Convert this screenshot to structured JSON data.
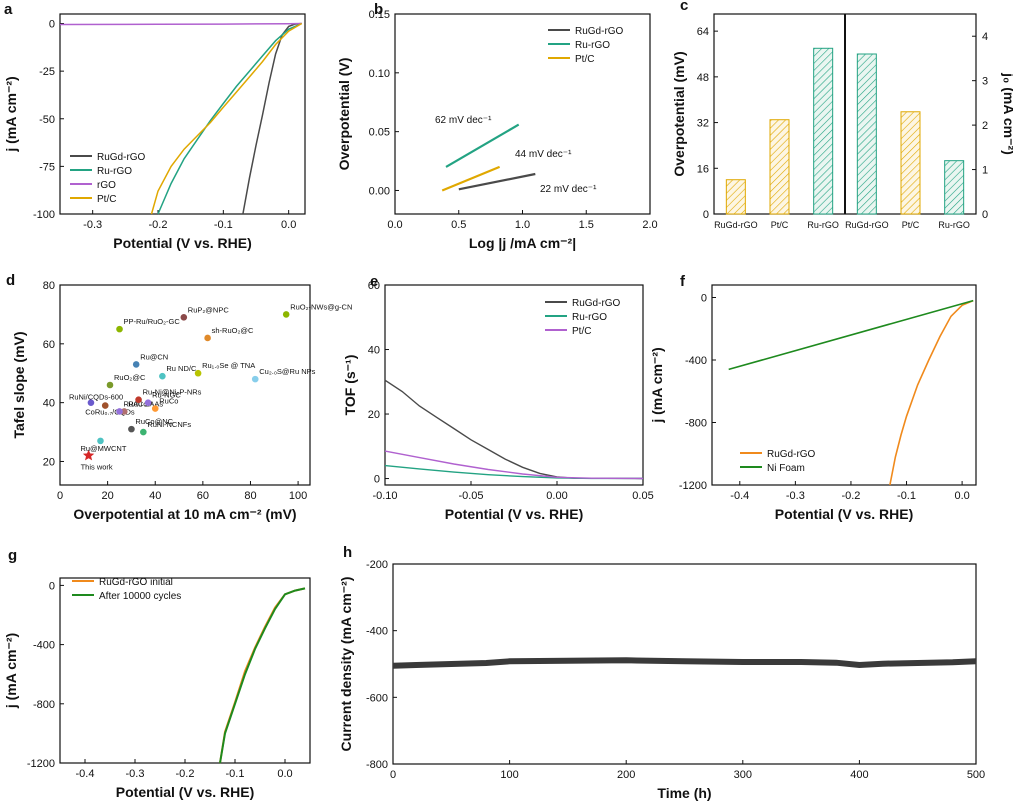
{
  "chart_data": [
    {
      "panel": "a",
      "type": "line",
      "xlabel": "Potential (V vs. RHE)",
      "ylabel": "j (mA cm⁻²)",
      "xlim": [
        -0.35,
        0.025
      ],
      "ylim": [
        -100,
        5
      ],
      "xticks": [
        -0.3,
        -0.2,
        -0.1,
        0.0
      ],
      "xticklabels": [
        "-0.3",
        "-0.2",
        "-0.1",
        "0.0"
      ],
      "yticks": [
        0,
        -25,
        -50,
        -75,
        -100
      ],
      "yticklabels": [
        "0",
        "-25",
        "-50",
        "-75",
        "-100"
      ],
      "legend_position": "bottom-left",
      "series": [
        {
          "name": "RuGd-rGO",
          "color": "#4a4a4a",
          "x": [
            0.02,
            0.01,
            0.0,
            -0.01,
            -0.02,
            -0.03,
            -0.04,
            -0.05,
            -0.06,
            -0.07
          ],
          "y": [
            0,
            -0.3,
            -1.5,
            -6,
            -16,
            -31,
            -48,
            -64,
            -81,
            -100
          ]
        },
        {
          "name": "Ru-rGO",
          "color": "#23a383",
          "x": [
            0.02,
            0.0,
            -0.02,
            -0.04,
            -0.06,
            -0.08,
            -0.1,
            -0.12,
            -0.14,
            -0.16,
            -0.18,
            -0.2
          ],
          "y": [
            0,
            -3,
            -9,
            -17,
            -25,
            -33,
            -42,
            -51,
            -61,
            -71,
            -84,
            -100
          ]
        },
        {
          "name": "rGO",
          "color": "#b061cf",
          "x": [
            -0.35,
            -0.2,
            -0.1,
            0.0,
            0.02
          ],
          "y": [
            -0.5,
            -0.4,
            -0.3,
            -0.1,
            0
          ]
        },
        {
          "name": "Pt/C",
          "color": "#e0a800",
          "x": [
            0.02,
            0.0,
            -0.02,
            -0.04,
            -0.06,
            -0.08,
            -0.1,
            -0.12,
            -0.14,
            -0.16,
            -0.18,
            -0.2,
            -0.21
          ],
          "y": [
            0,
            -4,
            -11,
            -20,
            -28,
            -36,
            -44,
            -52,
            -59,
            -66,
            -75,
            -88,
            -100
          ]
        }
      ]
    },
    {
      "panel": "b",
      "type": "line",
      "xlabel": "Log |j /mA cm⁻²|",
      "ylabel": "Overpotential (V)",
      "xlim": [
        0.0,
        2.0
      ],
      "ylim": [
        -0.02,
        0.15
      ],
      "xticks": [
        0.0,
        0.5,
        1.0,
        1.5,
        2.0
      ],
      "xticklabels": [
        "0.0",
        "0.5",
        "1.0",
        "1.5",
        "2.0"
      ],
      "yticks": [
        0.0,
        0.05,
        0.1,
        0.15
      ],
      "yticklabels": [
        "0.00",
        "0.05",
        "0.10",
        "0.15"
      ],
      "legend_position": "top-right",
      "series": [
        {
          "name": "RuGd-rGO",
          "color": "#4a4a4a",
          "x": [
            0.5,
            1.1
          ],
          "y": [
            0.001,
            0.014
          ]
        },
        {
          "name": "Ru-rGO",
          "color": "#23a383",
          "x": [
            0.4,
            0.97
          ],
          "y": [
            0.02,
            0.056
          ]
        },
        {
          "name": "Pt/C",
          "color": "#e0a800",
          "x": [
            0.37,
            0.82
          ],
          "y": [
            0.0,
            0.02
          ]
        }
      ],
      "annotations": [
        "62 mV dec⁻¹",
        "44 mV dec⁻¹",
        "22 mV dec⁻¹"
      ]
    },
    {
      "panel": "c",
      "type": "bar",
      "categories": [
        "RuGd-rGO",
        "Pt/C",
        "Ru-rGO",
        "RuGd-rGO",
        "Pt/C",
        "Ru-rGO"
      ],
      "ylabel_left": "Overpotential (mV)",
      "ylabel_right": "j₀ (mA cm⁻²)",
      "ylim_left": [
        0,
        70
      ],
      "ylim_right": [
        0,
        4.5
      ],
      "yticks_left": [
        0,
        16,
        32,
        48,
        64
      ],
      "yticklabels_left": [
        "0",
        "16",
        "32",
        "48",
        "64"
      ],
      "yticks_right": [
        0,
        1,
        2,
        3,
        4
      ],
      "yticklabels_right": [
        "0",
        "1",
        "2",
        "3",
        "4"
      ],
      "overpotential": [
        12,
        33,
        58
      ],
      "j0": [
        3.6,
        2.3,
        1.2
      ],
      "colors": [
        "#e0a800",
        "#e0a800",
        "#23a383",
        "#23a383",
        "#e0a800",
        "#23a383"
      ]
    },
    {
      "panel": "d",
      "type": "scatter",
      "xlabel": "Overpotential at 10 mA cm⁻² (mV)",
      "ylabel": "Tafel slope (mV)",
      "xlim": [
        0,
        105
      ],
      "ylim": [
        12,
        80
      ],
      "xticks": [
        0,
        20,
        40,
        60,
        80,
        100
      ],
      "xticklabels": [
        "0",
        "20",
        "40",
        "60",
        "80",
        "100"
      ],
      "yticks": [
        20,
        40,
        60,
        80
      ],
      "yticklabels": [
        "20",
        "40",
        "60",
        "80"
      ],
      "points": [
        {
          "label": "This work",
          "x": 12,
          "y": 22,
          "color": "#d62728",
          "marker": "star"
        },
        {
          "label": "Ru@MWCNT",
          "x": 17,
          "y": 27,
          "color": "#4fc3c3",
          "marker": "circle"
        },
        {
          "label": "RuNi/CQDs-600",
          "x": 13,
          "y": 40,
          "color": "#6a5acd",
          "marker": "circle"
        },
        {
          "label": "CoRu₀.₇/CQDs",
          "x": 19,
          "y": 39,
          "color": "#a0522d",
          "marker": "circle"
        },
        {
          "label": "RuO₂@C",
          "x": 21,
          "y": 46,
          "color": "#7a9a2a",
          "marker": "circle"
        },
        {
          "label": "RuCoP",
          "x": 27,
          "y": 37,
          "color": "#b07070",
          "marker": "circle"
        },
        {
          "label": "RuAu SAAs",
          "x": 25,
          "y": 37,
          "color": "#9370db",
          "marker": "circle"
        },
        {
          "label": "RuCo@NC",
          "x": 30,
          "y": 31,
          "color": "#555555",
          "marker": "circle"
        },
        {
          "label": "Ru@CN",
          "x": 32,
          "y": 53,
          "color": "#4682b4",
          "marker": "circle"
        },
        {
          "label": "PP-Ru/RuO₂-GC",
          "x": 25,
          "y": 65,
          "color": "#8db600",
          "marker": "circle"
        },
        {
          "label": "Ru-Ni@Ni₂P-NRs",
          "x": 33,
          "y": 41,
          "color": "#c0392b",
          "marker": "circle"
        },
        {
          "label": "Ru-NGC",
          "x": 37,
          "y": 40,
          "color": "#9370db",
          "marker": "circle"
        },
        {
          "label": "RuCo",
          "x": 40,
          "y": 38,
          "color": "#ff9933",
          "marker": "circle"
        },
        {
          "label": "Ru ND/C",
          "x": 43,
          "y": 49,
          "color": "#4fc3c3",
          "marker": "circle"
        },
        {
          "label": "RuNi-NCNFs",
          "x": 35,
          "y": 30,
          "color": "#3cb371",
          "marker": "circle"
        },
        {
          "label": "RuP₂@NPC",
          "x": 52,
          "y": 69,
          "color": "#8b4a4a",
          "marker": "circle"
        },
        {
          "label": "sh-RuO₂@C",
          "x": 62,
          "y": 62,
          "color": "#e08a2a",
          "marker": "circle"
        },
        {
          "label": "Ru₁.₀Se @ TNA",
          "x": 58,
          "y": 50,
          "color": "#b8c400",
          "marker": "circle"
        },
        {
          "label": "Cu₂.₀S@Ru NPs",
          "x": 82,
          "y": 48,
          "color": "#87ceeb",
          "marker": "circle"
        },
        {
          "label": "RuO₂-NWs@g-CN",
          "x": 95,
          "y": 70,
          "color": "#8db600",
          "marker": "circle"
        }
      ]
    },
    {
      "panel": "e",
      "type": "line",
      "xlabel": "Potential (V vs. RHE)",
      "ylabel": "TOF (s⁻¹)",
      "xlim": [
        -0.1,
        0.05
      ],
      "ylim": [
        -2,
        60
      ],
      "xticks": [
        -0.1,
        -0.05,
        0.0,
        0.05
      ],
      "xticklabels": [
        "-0.10",
        "-0.05",
        "0.00",
        "0.05"
      ],
      "yticks": [
        0,
        20,
        40,
        60
      ],
      "yticklabels": [
        "0",
        "20",
        "40",
        "60"
      ],
      "legend_position": "top-right",
      "series": [
        {
          "name": "RuGd-rGO",
          "color": "#4a4a4a",
          "x": [
            -0.1,
            -0.09,
            -0.08,
            -0.07,
            -0.06,
            -0.05,
            -0.04,
            -0.03,
            -0.02,
            -0.01,
            0.0,
            0.01,
            0.05
          ],
          "y": [
            30.5,
            27,
            22.5,
            19,
            15.5,
            12,
            9,
            6,
            3.5,
            1.6,
            0.5,
            0.1,
            0
          ]
        },
        {
          "name": "Ru-rGO",
          "color": "#23a383",
          "x": [
            -0.1,
            -0.08,
            -0.06,
            -0.04,
            -0.02,
            0.0,
            0.02,
            0.05
          ],
          "y": [
            4,
            3,
            2,
            1.2,
            0.6,
            0.2,
            0.05,
            0
          ]
        },
        {
          "name": "Pt/C",
          "color": "#b061cf",
          "x": [
            -0.1,
            -0.08,
            -0.06,
            -0.04,
            -0.02,
            0.0,
            0.02,
            0.05
          ],
          "y": [
            8.5,
            6.5,
            4.5,
            2.8,
            1.4,
            0.4,
            0.1,
            0
          ]
        }
      ]
    },
    {
      "panel": "f",
      "type": "line",
      "xlabel": "Potential (V vs. RHE)",
      "ylabel": "j (mA cm⁻²)",
      "xlim": [
        -0.45,
        0.025
      ],
      "ylim": [
        -1200,
        80
      ],
      "xticks": [
        -0.4,
        -0.3,
        -0.2,
        -0.1,
        0.0
      ],
      "xticklabels": [
        "-0.4",
        "-0.3",
        "-0.2",
        "-0.1",
        "0.0"
      ],
      "yticks": [
        0,
        -400,
        -800,
        -1200
      ],
      "yticklabels": [
        "0",
        "-400",
        "-800",
        "-1200"
      ],
      "legend_position": "bottom-left",
      "series": [
        {
          "name": "RuGd-rGO",
          "color": "#f08a1c",
          "x": [
            0.02,
            0.0,
            -0.02,
            -0.04,
            -0.06,
            -0.08,
            -0.1,
            -0.11,
            -0.12,
            -0.13
          ],
          "y": [
            -20,
            -50,
            -120,
            -250,
            -400,
            -560,
            -760,
            -880,
            -1020,
            -1200
          ]
        },
        {
          "name": "Ni Foam",
          "color": "#1e8a1e",
          "x": [
            -0.42,
            0.02
          ],
          "y": [
            -460,
            -20
          ]
        }
      ]
    },
    {
      "panel": "g",
      "type": "line",
      "xlabel": "Potential (V vs. RHE)",
      "ylabel": "j (mA cm⁻²)",
      "xlim": [
        -0.45,
        0.05
      ],
      "ylim": [
        -1200,
        50
      ],
      "xticks": [
        -0.4,
        -0.3,
        -0.2,
        -0.1,
        0.0
      ],
      "xticklabels": [
        "-0.4",
        "-0.3",
        "-0.2",
        "-0.1",
        "0.0"
      ],
      "yticks": [
        0,
        -400,
        -800,
        -1200
      ],
      "yticklabels": [
        "0",
        "-400",
        "-800",
        "-1200"
      ],
      "legend_position": "top-left",
      "series": [
        {
          "name": "RuGd-rGO initial",
          "color": "#f08a1c",
          "x": [
            0.04,
            0.02,
            0.0,
            -0.02,
            -0.04,
            -0.06,
            -0.08,
            -0.1,
            -0.12,
            -0.13
          ],
          "y": [
            -20,
            -35,
            -60,
            -150,
            -280,
            -420,
            -580,
            -790,
            -990,
            -1200
          ]
        },
        {
          "name": "After 10000 cycles",
          "color": "#1e8a1e",
          "x": [
            0.04,
            0.02,
            0.0,
            -0.02,
            -0.04,
            -0.06,
            -0.08,
            -0.1,
            -0.12,
            -0.13
          ],
          "y": [
            -20,
            -35,
            -60,
            -160,
            -290,
            -430,
            -600,
            -800,
            -1000,
            -1200
          ]
        }
      ]
    },
    {
      "panel": "h",
      "type": "line",
      "xlabel": "Time (h)",
      "ylabel": "Current density (mA cm⁻²)",
      "xlim": [
        0,
        500
      ],
      "ylim": [
        -800,
        -200
      ],
      "xticks": [
        0,
        100,
        200,
        300,
        400,
        500
      ],
      "xticklabels": [
        "0",
        "100",
        "200",
        "300",
        "400",
        "500"
      ],
      "yticks": [
        -200,
        -400,
        -600,
        -800
      ],
      "yticklabels": [
        "-200",
        "-400",
        "-600",
        "-800"
      ],
      "series": [
        {
          "name": "RuGd-rGO",
          "color": "#3a3a3a",
          "x": [
            0,
            20,
            50,
            80,
            100,
            150,
            200,
            250,
            300,
            350,
            380,
            400,
            420,
            450,
            480,
            500
          ],
          "y": [
            -505,
            -503,
            -500,
            -497,
            -492,
            -490,
            -489,
            -492,
            -494,
            -494,
            -496,
            -503,
            -499,
            -497,
            -495,
            -492
          ]
        }
      ]
    }
  ]
}
